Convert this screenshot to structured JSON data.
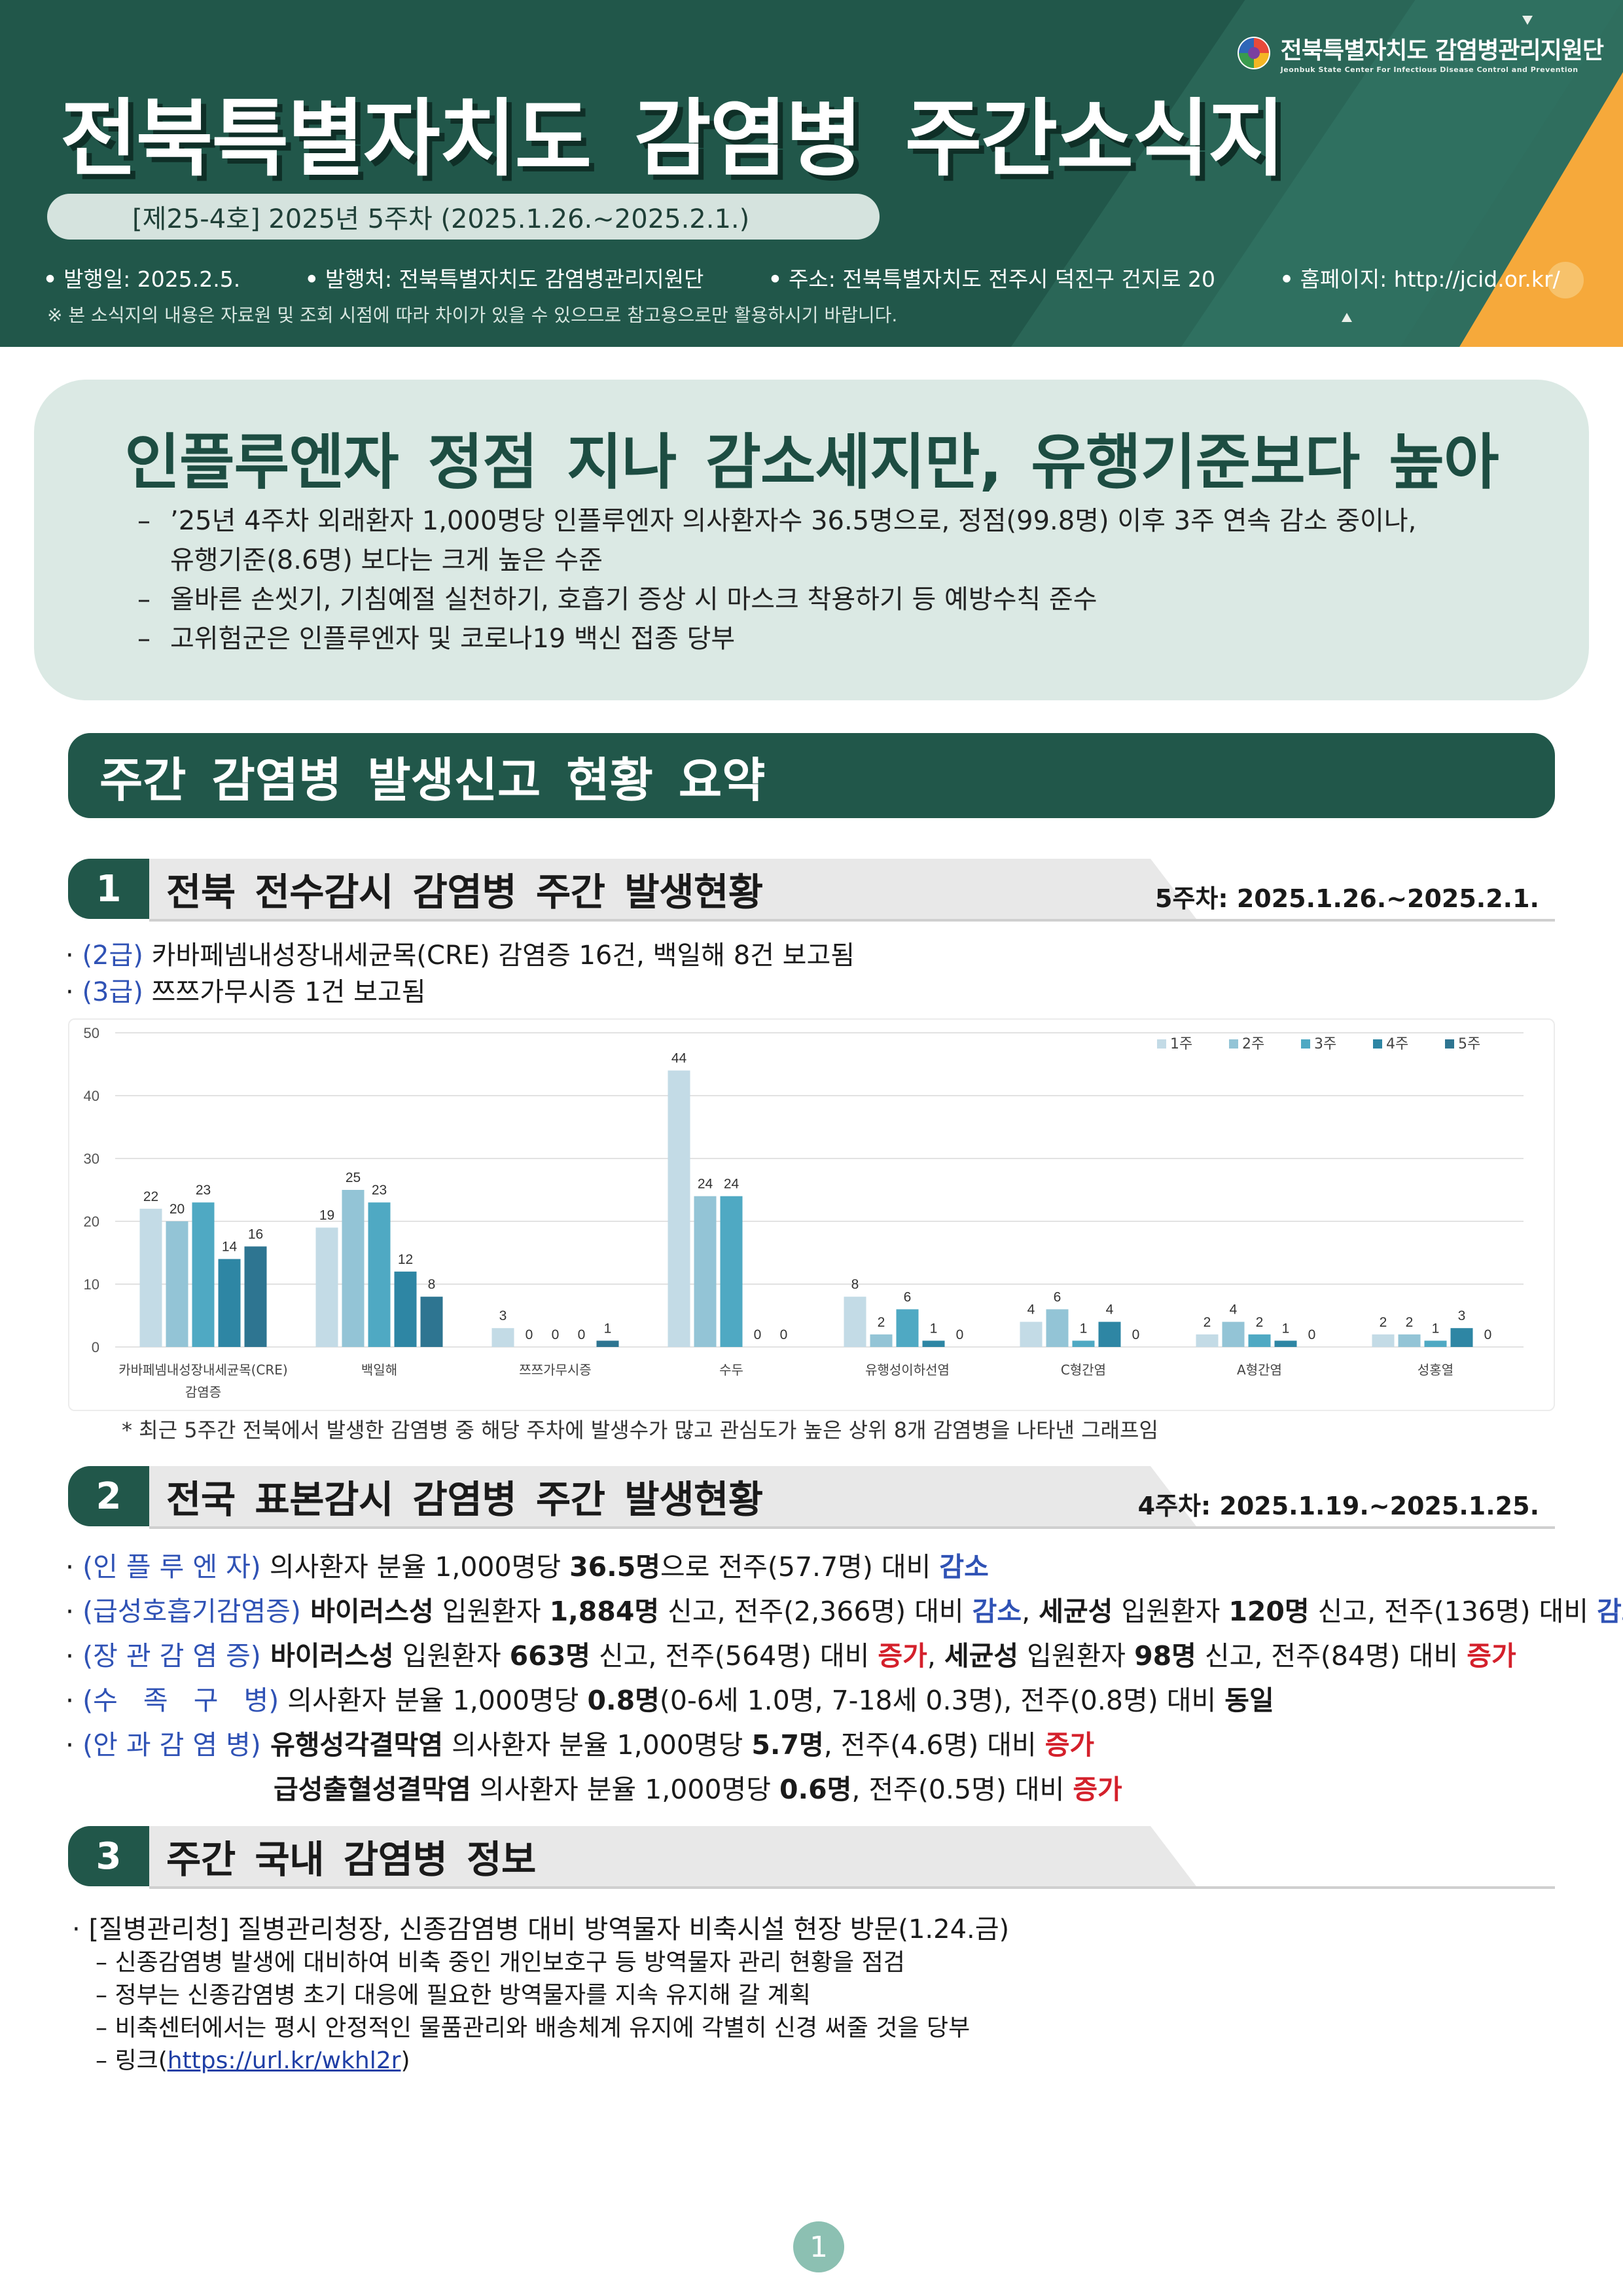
{
  "header": {
    "logo_name": "전북특별자치도 감염병관리지원단",
    "logo_sub": "Jeonbuk State Center For Infectious Disease Control and Prevention",
    "title": "전북특별자치도 감염병 주간소식지",
    "issue": "[제25-4호] 2025년 5주차 (2025.1.26.~2025.2.1.)",
    "meta": [
      "발행일: 2025.2.5.",
      "발행처: 전북특별자치도 감염병관리지원단",
      "주소: 전북특별자치도 전주시 덕진구 건지로 20",
      "홈페이지: http://jcid.or.kr/"
    ],
    "notice": "※ 본 소식지의 내용은 자료원 및 조회 시점에 따라 차이가 있을 수 있으므로 참고용으로만 활용하시기 바랍니다."
  },
  "headline": {
    "title": "인플루엔자 정점 지나 감소세지만, 유행기준보다 높아",
    "items": [
      "’25년 4주차 외래환자 1,000명당 인플루엔자 의사환자수 36.5명으로, 정점(99.8명) 이후 3주 연속 감소 중이나,",
      "유행기준(8.6명) 보다는 크게 높은 수준",
      "올바른 손씻기, 기침예절 실천하기, 호흡기 증상 시 마스크 착용하기 등 예방수칙 준수",
      "고위험군은 인플루엔자 및 코로나19 백신 접종 당부"
    ]
  },
  "summary_bar": "주간 감염병 발생신고 현황 요약",
  "section1": {
    "num": "1",
    "title": "전북 전수감시 감염병 주간 발생현황",
    "period": "5주차: 2025.1.26.~2025.2.1.",
    "bullets": [
      {
        "grade": "(2급)",
        "text": " 카바페넴내성장내세균목(CRE) 감염증 16건, 백일해 8건 보고됨"
      },
      {
        "grade": "(3급)",
        "text": " 쯔쯔가무시증 1건 보고됨"
      }
    ],
    "note": "* 최근 5주간 전북에서 발생한 감염병 중 해당 주차에 발생수가 많고 관심도가 높은 상위 8개 감염병을 나타낸 그래프임"
  },
  "chart_data": {
    "type": "bar",
    "categories": [
      "카바페넴내성장내세균목(CRE)\n감염증",
      "백일해",
      "쯔쯔가무시증",
      "수두",
      "유행성이하선염",
      "C형간염",
      "A형간염",
      "성홍열"
    ],
    "series": [
      {
        "name": "1주",
        "values": [
          22,
          19,
          3,
          44,
          8,
          4,
          2,
          2
        ]
      },
      {
        "name": "2주",
        "values": [
          20,
          25,
          0,
          24,
          2,
          6,
          4,
          2
        ]
      },
      {
        "name": "3주",
        "values": [
          23,
          23,
          0,
          24,
          6,
          1,
          2,
          1
        ]
      },
      {
        "name": "4주",
        "values": [
          14,
          12,
          0,
          0,
          1,
          4,
          1,
          3
        ]
      },
      {
        "name": "5주",
        "values": [
          16,
          8,
          1,
          0,
          0,
          0,
          0,
          0
        ]
      }
    ],
    "yticks": [
      0,
      10,
      20,
      30,
      40,
      50
    ],
    "ylim": [
      0,
      50
    ],
    "colors": [
      "#c3dbe6",
      "#93c4d6",
      "#4fa9c3",
      "#2e86a4",
      "#2e7591"
    ],
    "legend_position": "top-right",
    "grid": true
  },
  "section2": {
    "num": "2",
    "title": "전국 표본감시 감염병 주간 발생현황",
    "period": "4주차: 2025.1.19.~2025.1.25.",
    "rows": [
      {
        "label": "(인 플 루 엔 자)",
        "parts": [
          {
            "t": " 의사환자 분율 1,000명당 ",
            "s": "n"
          },
          {
            "t": "36.5명",
            "s": "b"
          },
          {
            "t": "으로 전주(57.7명) 대비 ",
            "s": "n"
          },
          {
            "t": "감소",
            "s": "blue"
          }
        ]
      },
      {
        "label": "(급성호흡기감염증)",
        "parts": [
          {
            "t": " 바이러스성",
            "s": "b"
          },
          {
            "t": " 입원환자 ",
            "s": "n"
          },
          {
            "t": "1,884명",
            "s": "b"
          },
          {
            "t": " 신고, 전주(2,366명) 대비 ",
            "s": "n"
          },
          {
            "t": "감소",
            "s": "blue"
          },
          {
            "t": ", ",
            "s": "n"
          },
          {
            "t": "세균성",
            "s": "b"
          },
          {
            "t": " 입원환자 ",
            "s": "n"
          },
          {
            "t": "120명",
            "s": "b"
          },
          {
            "t": " 신고, 전주(136명) 대비 ",
            "s": "n"
          },
          {
            "t": "감소",
            "s": "blue"
          }
        ]
      },
      {
        "label": "(장 관 감 염 증)",
        "parts": [
          {
            "t": " 바이러스성",
            "s": "b"
          },
          {
            "t": " 입원환자 ",
            "s": "n"
          },
          {
            "t": "663명",
            "s": "b"
          },
          {
            "t": " 신고, 전주(564명) 대비 ",
            "s": "n"
          },
          {
            "t": "증가",
            "s": "red"
          },
          {
            "t": ", ",
            "s": "n"
          },
          {
            "t": "세균성",
            "s": "b"
          },
          {
            "t": " 입원환자 ",
            "s": "n"
          },
          {
            "t": "98명",
            "s": "b"
          },
          {
            "t": " 신고, 전주(84명) 대비 ",
            "s": "n"
          },
          {
            "t": "증가",
            "s": "red"
          }
        ]
      },
      {
        "label": "(수   족   구   병)",
        "parts": [
          {
            "t": " 의사환자 분율 1,000명당 ",
            "s": "n"
          },
          {
            "t": "0.8명",
            "s": "b"
          },
          {
            "t": "(0-6세 1.0명, 7-18세 0.3명), 전주(0.8명) 대비 ",
            "s": "n"
          },
          {
            "t": "동일",
            "s": "b"
          }
        ]
      },
      {
        "label": "(안 과 감 염 병)",
        "parts": [
          {
            "t": " 유행성각결막염",
            "s": "b"
          },
          {
            "t": " 의사환자 분율 1,000명당 ",
            "s": "n"
          },
          {
            "t": "5.7명",
            "s": "b"
          },
          {
            "t": ", 전주(4.6명) 대비 ",
            "s": "n"
          },
          {
            "t": "증가",
            "s": "red"
          }
        ]
      },
      {
        "label": "",
        "parts": [
          {
            "t": "급성출혈성결막염",
            "s": "b"
          },
          {
            "t": " 의사환자 분율 1,000명당 ",
            "s": "n"
          },
          {
            "t": "0.6명",
            "s": "b"
          },
          {
            "t": ", 전주(0.5명) 대비 ",
            "s": "n"
          },
          {
            "t": "증가",
            "s": "red"
          }
        ]
      }
    ]
  },
  "section3": {
    "num": "3",
    "title": "주간 국내 감염병 정보",
    "headline": "[질병관리청] 질병관리청장, 신종감염병 대비 방역물자 비축시설 현장 방문(1.24.금)",
    "items": [
      "신종감염병 발생에 대비하여 비축 중인 개인보호구 등 방역물자 관리 현황을 점검",
      "정부는 신종감염병 초기 대응에 필요한 방역물자를 지속 유지해 갈 계획",
      "비축센터에서는 평시 안정적인 물품관리와 배송체계 유지에 각별히 신경 써줄 것을 당부"
    ],
    "link_prefix": "링크(",
    "link": "https://url.kr/wkhl2r",
    "link_suffix": ")"
  },
  "page_number": "1"
}
